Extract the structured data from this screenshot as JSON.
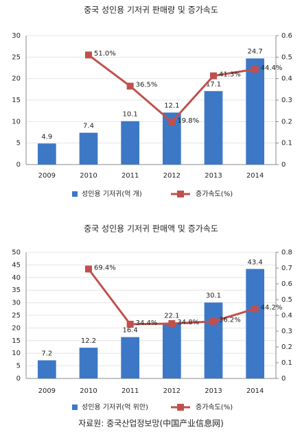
{
  "chart_data": [
    {
      "type": "combo",
      "title": "중국 성인용 기저귀 판매량 및 증가속도",
      "categories": [
        "2009",
        "2010",
        "2011",
        "2012",
        "2013",
        "2014"
      ],
      "series": [
        {
          "name": "성인용 기저귀(억 개)",
          "type": "bar",
          "color": "#3c78c6",
          "values": [
            4.9,
            7.4,
            10.1,
            12.1,
            17.1,
            24.7
          ]
        },
        {
          "name": "증가속도(%)",
          "type": "line",
          "axis": "y2",
          "color": "#c0504d",
          "values": [
            null,
            0.51,
            0.365,
            0.198,
            0.413,
            0.444
          ],
          "value_labels": [
            null,
            "51.0%",
            "36.5%",
            "19.8%",
            "41.3%",
            "44.4%"
          ]
        }
      ],
      "ylim": [
        0,
        30
      ],
      "yticks": [
        0,
        5,
        10,
        15,
        20,
        25,
        30
      ],
      "y2lim": [
        0,
        0.6
      ],
      "y2ticks": [
        0,
        0.1,
        0.2,
        0.3,
        0.4,
        0.5,
        0.6
      ],
      "grid": true
    },
    {
      "type": "combo",
      "title": "중국 성인용 기저귀 판매액 및 증가속도",
      "categories": [
        "2009",
        "2010",
        "2011",
        "2012",
        "2013",
        "2014"
      ],
      "series": [
        {
          "name": "성인용 기저귀(억 위안)",
          "type": "bar",
          "color": "#3c78c6",
          "values": [
            7.2,
            12.2,
            16.4,
            22.1,
            30.1,
            43.4
          ]
        },
        {
          "name": "증가속도(%)",
          "type": "line",
          "axis": "y2",
          "color": "#c0504d",
          "values": [
            null,
            0.694,
            0.344,
            0.348,
            0.362,
            0.442
          ],
          "value_labels": [
            null,
            "69.4%",
            "34.4%",
            "34.8%",
            "36.2%",
            "44.2%"
          ]
        }
      ],
      "ylim": [
        0,
        50
      ],
      "yticks": [
        0,
        5,
        10,
        15,
        20,
        25,
        30,
        35,
        40,
        45,
        50
      ],
      "y2lim": [
        0,
        0.8
      ],
      "y2ticks": [
        0,
        0.1,
        0.2,
        0.3,
        0.4,
        0.5,
        0.6,
        0.7,
        0.8
      ],
      "grid": true
    }
  ],
  "source": "자료원: 중국산업정보망(中国产业信息网)"
}
